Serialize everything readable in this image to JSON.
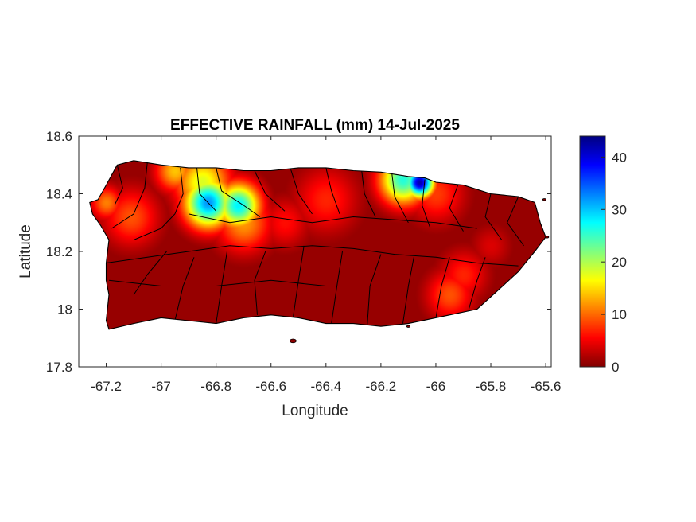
{
  "figure": {
    "title": "EFFECTIVE RAINFALL (mm) 14-Jul-2025",
    "xlabel": "Longitude",
    "ylabel": "Latitude"
  },
  "axes": {
    "xlim": [
      -67.3,
      -65.58
    ],
    "ylim": [
      17.8,
      18.6
    ],
    "xticks": [
      -67.2,
      -67.0,
      -66.8,
      -66.6,
      -66.4,
      -66.2,
      -66.0,
      -65.8,
      -65.6
    ],
    "xtick_labels": [
      "-67.2",
      "-67",
      "-66.8",
      "-66.6",
      "-66.4",
      "-66.2",
      "-66",
      "-65.8",
      "-65.6"
    ],
    "yticks": [
      17.8,
      18.0,
      18.2,
      18.4,
      18.6
    ],
    "ytick_labels": [
      "17.8",
      "18",
      "18.2",
      "18.4",
      "18.6"
    ]
  },
  "colorbar": {
    "colormap": "jet",
    "range": [
      0,
      44
    ],
    "ticks": [
      0,
      10,
      20,
      30,
      40
    ],
    "tick_labels": [
      "0",
      "10",
      "20",
      "30",
      "40"
    ]
  },
  "chart_data": {
    "type": "heatmap",
    "title": "EFFECTIVE RAINFALL (mm) 14-Jul-2025",
    "xlabel": "Longitude",
    "ylabel": "Latitude",
    "xlim": [
      -67.3,
      -65.58
    ],
    "ylim": [
      17.8,
      18.6
    ],
    "value_range": [
      0,
      44
    ],
    "background_value": 1,
    "island_outline": [
      [
        -67.26,
        18.37
      ],
      [
        -67.23,
        18.38
      ],
      [
        -67.2,
        18.43
      ],
      [
        -67.16,
        18.5
      ],
      [
        -67.1,
        18.515
      ],
      [
        -67.0,
        18.5
      ],
      [
        -66.9,
        18.49
      ],
      [
        -66.8,
        18.49
      ],
      [
        -66.7,
        18.48
      ],
      [
        -66.6,
        18.48
      ],
      [
        -66.5,
        18.49
      ],
      [
        -66.4,
        18.49
      ],
      [
        -66.3,
        18.48
      ],
      [
        -66.2,
        18.475
      ],
      [
        -66.1,
        18.46
      ],
      [
        -66.04,
        18.455
      ],
      [
        -66.0,
        18.44
      ],
      [
        -65.9,
        18.43
      ],
      [
        -65.8,
        18.4
      ],
      [
        -65.7,
        18.39
      ],
      [
        -65.64,
        18.37
      ],
      [
        -65.62,
        18.3
      ],
      [
        -65.6,
        18.25
      ],
      [
        -65.64,
        18.2
      ],
      [
        -65.7,
        18.13
      ],
      [
        -65.78,
        18.06
      ],
      [
        -65.85,
        18.0
      ],
      [
        -65.95,
        17.98
      ],
      [
        -66.1,
        17.95
      ],
      [
        -66.2,
        17.94
      ],
      [
        -66.3,
        17.95
      ],
      [
        -66.4,
        17.95
      ],
      [
        -66.5,
        17.97
      ],
      [
        -66.6,
        17.98
      ],
      [
        -66.7,
        17.97
      ],
      [
        -66.8,
        17.95
      ],
      [
        -66.9,
        17.96
      ],
      [
        -67.0,
        17.97
      ],
      [
        -67.1,
        17.95
      ],
      [
        -67.19,
        17.93
      ],
      [
        -67.2,
        17.96
      ],
      [
        -67.19,
        18.05
      ],
      [
        -67.2,
        18.1
      ],
      [
        -67.2,
        18.16
      ],
      [
        -67.19,
        18.24
      ],
      [
        -67.22,
        18.29
      ],
      [
        -67.25,
        18.33
      ]
    ],
    "rainfall_maxima": [
      {
        "lon": -66.06,
        "lat": 18.44,
        "rain_mm": 42,
        "spread_deg": 0.035
      },
      {
        "lon": -66.12,
        "lat": 18.45,
        "rain_mm": 26,
        "spread_deg": 0.06
      },
      {
        "lon": -66.83,
        "lat": 18.37,
        "rain_mm": 32,
        "spread_deg": 0.06
      },
      {
        "lon": -66.72,
        "lat": 18.36,
        "rain_mm": 28,
        "spread_deg": 0.055
      },
      {
        "lon": -66.85,
        "lat": 18.44,
        "rain_mm": 18,
        "spread_deg": 0.07
      },
      {
        "lon": -66.95,
        "lat": 18.48,
        "rain_mm": 14,
        "spread_deg": 0.05
      },
      {
        "lon": -66.7,
        "lat": 18.3,
        "rain_mm": 12,
        "spread_deg": 0.07
      },
      {
        "lon": -67.2,
        "lat": 18.37,
        "rain_mm": 11,
        "spread_deg": 0.04
      },
      {
        "lon": -67.11,
        "lat": 18.32,
        "rain_mm": 9,
        "spread_deg": 0.07
      },
      {
        "lon": -66.4,
        "lat": 18.38,
        "rain_mm": 7,
        "spread_deg": 0.08
      },
      {
        "lon": -65.95,
        "lat": 18.05,
        "rain_mm": 9,
        "spread_deg": 0.06
      },
      {
        "lon": -65.9,
        "lat": 18.12,
        "rain_mm": 7,
        "spread_deg": 0.06
      },
      {
        "lon": -66.0,
        "lat": 18.4,
        "rain_mm": 8,
        "spread_deg": 0.07
      },
      {
        "lon": -66.55,
        "lat": 18.3,
        "rain_mm": 6,
        "spread_deg": 0.06
      },
      {
        "lon": -65.8,
        "lat": 18.22,
        "rain_mm": 4,
        "spread_deg": 0.05
      }
    ]
  }
}
